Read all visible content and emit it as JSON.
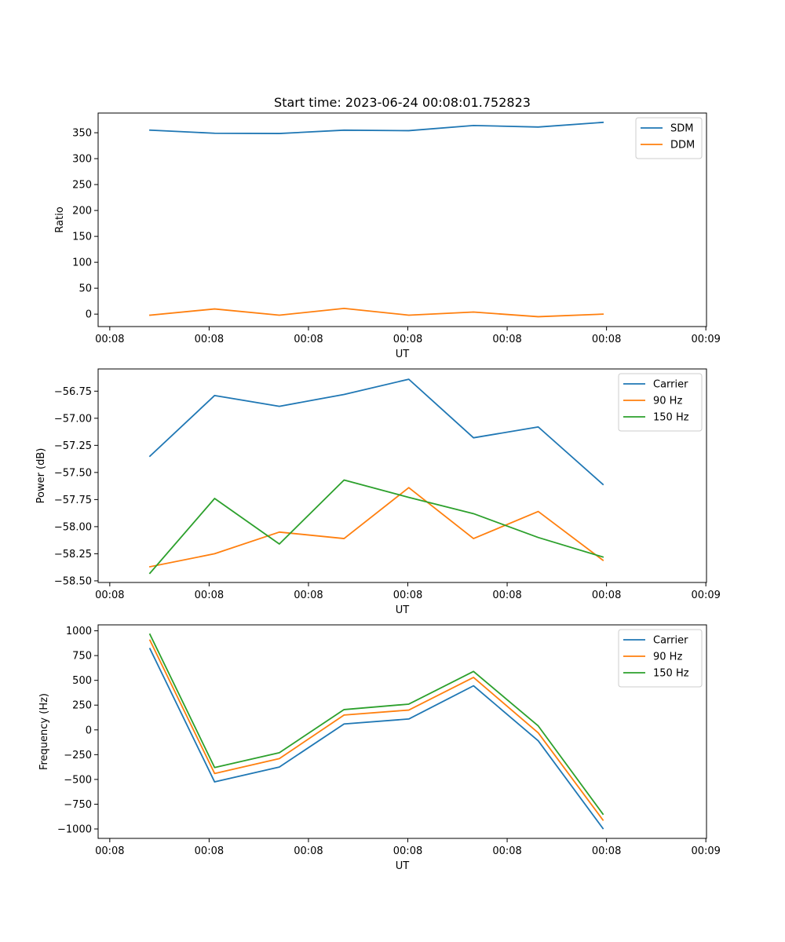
{
  "colors": {
    "c0": "#1f77b4",
    "c1": "#ff7f0e",
    "c2": "#2ca02c"
  },
  "chart_data": [
    {
      "type": "line",
      "title": "Start time: 2023-06-24 00:08:01.752823",
      "xlabel": "UT",
      "ylabel": "Ratio",
      "xticks": [
        "00:08",
        "00:08",
        "00:08",
        "00:08",
        "00:08",
        "00:08",
        "00:09"
      ],
      "yticks": [
        "0",
        "50",
        "100",
        "150",
        "200",
        "250",
        "300",
        "350"
      ],
      "ylim": [
        -24,
        388
      ],
      "x": [
        1,
        2,
        3,
        4,
        5,
        6,
        7,
        8
      ],
      "legend": "top-right",
      "series": [
        {
          "name": "SDM",
          "color": "#1f77b4",
          "values": [
            355,
            349,
            348.5,
            355,
            354,
            364,
            361,
            370
          ]
        },
        {
          "name": "DDM",
          "color": "#ff7f0e",
          "values": [
            -2,
            10,
            -2,
            11,
            -2,
            4,
            -5,
            0
          ]
        }
      ]
    },
    {
      "type": "line",
      "title": "",
      "xlabel": "UT",
      "ylabel": "Power (dB)",
      "xticks": [
        "00:08",
        "00:08",
        "00:08",
        "00:08",
        "00:08",
        "00:08",
        "00:09"
      ],
      "yticks": [
        "−58.50",
        "−58.25",
        "−58.00",
        "−57.75",
        "−57.50",
        "−57.25",
        "−57.00",
        "−56.75"
      ],
      "ylim": [
        -58.515,
        -56.545
      ],
      "x": [
        1,
        2,
        3,
        4,
        5,
        6,
        7,
        8
      ],
      "legend": "top-right",
      "series": [
        {
          "name": "Carrier",
          "color": "#1f77b4",
          "values": [
            -57.35,
            -56.79,
            -56.89,
            -56.78,
            -56.64,
            -57.18,
            -57.08,
            -57.61
          ]
        },
        {
          "name": "90 Hz",
          "color": "#ff7f0e",
          "values": [
            -58.37,
            -58.25,
            -58.05,
            -58.11,
            -57.64,
            -58.11,
            -57.86,
            -58.31
          ]
        },
        {
          "name": "150 Hz",
          "color": "#2ca02c",
          "values": [
            -58.43,
            -57.74,
            -58.16,
            -57.57,
            -57.73,
            -57.88,
            -58.1,
            -58.28
          ]
        }
      ]
    },
    {
      "type": "line",
      "title": "",
      "xlabel": "UT",
      "ylabel": "Frequency (Hz)",
      "xticks": [
        "00:08",
        "00:08",
        "00:08",
        "00:08",
        "00:08",
        "00:08",
        "00:09"
      ],
      "yticks": [
        "−1000",
        "−750",
        "−500",
        "−250",
        "0",
        "250",
        "500",
        "750",
        "1000"
      ],
      "ylim": [
        -1095,
        1060
      ],
      "x": [
        1,
        2,
        3,
        4,
        5,
        6,
        7,
        8
      ],
      "legend": "top-right",
      "series": [
        {
          "name": "Carrier",
          "color": "#1f77b4",
          "values": [
            820,
            -525,
            -375,
            60,
            110,
            445,
            -110,
            -995
          ]
        },
        {
          "name": "90 Hz",
          "color": "#ff7f0e",
          "values": [
            905,
            -440,
            -290,
            150,
            200,
            530,
            -30,
            -910
          ]
        },
        {
          "name": "150 Hz",
          "color": "#2ca02c",
          "values": [
            965,
            -380,
            -230,
            205,
            260,
            590,
            40,
            -850
          ]
        }
      ]
    }
  ]
}
